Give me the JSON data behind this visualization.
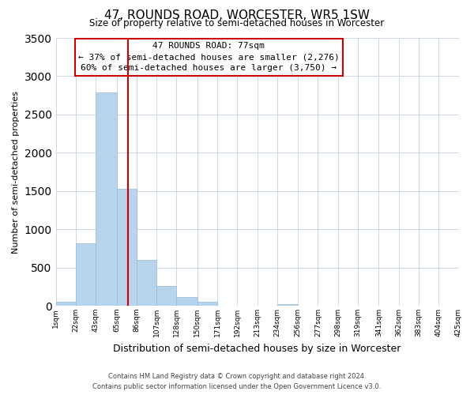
{
  "title": "47, ROUNDS ROAD, WORCESTER, WR5 1SW",
  "subtitle": "Size of property relative to semi-detached houses in Worcester",
  "xlabel": "Distribution of semi-detached houses by size in Worcester",
  "ylabel": "Number of semi-detached properties",
  "bar_edges": [
    1,
    22,
    43,
    65,
    86,
    107,
    128,
    150,
    171,
    192,
    213,
    234,
    256,
    277,
    298,
    319,
    341,
    362,
    383,
    404,
    425
  ],
  "bar_heights": [
    55,
    820,
    2790,
    1530,
    595,
    260,
    110,
    50,
    0,
    0,
    0,
    20,
    0,
    0,
    0,
    0,
    0,
    0,
    0,
    0
  ],
  "tick_labels": [
    "1sqm",
    "22sqm",
    "43sqm",
    "65sqm",
    "86sqm",
    "107sqm",
    "128sqm",
    "150sqm",
    "171sqm",
    "192sqm",
    "213sqm",
    "234sqm",
    "256sqm",
    "277sqm",
    "298sqm",
    "319sqm",
    "341sqm",
    "362sqm",
    "383sqm",
    "404sqm",
    "425sqm"
  ],
  "bar_color": "#b8d4ec",
  "bar_edge_color": "#9ab8d8",
  "property_line_x": 77,
  "annotation_title": "47 ROUNDS ROAD: 77sqm",
  "annotation_line1": "← 37% of semi-detached houses are smaller (2,276)",
  "annotation_line2": "60% of semi-detached houses are larger (3,750) →",
  "annotation_box_color": "#ffffff",
  "annotation_box_edge_color": "#cc0000",
  "property_line_color": "#cc0000",
  "ylim": [
    0,
    3500
  ],
  "footer1": "Contains HM Land Registry data © Crown copyright and database right 2024.",
  "footer2": "Contains public sector information licensed under the Open Government Licence v3.0.",
  "bg_color": "#ffffff",
  "grid_color": "#ccd8e8"
}
